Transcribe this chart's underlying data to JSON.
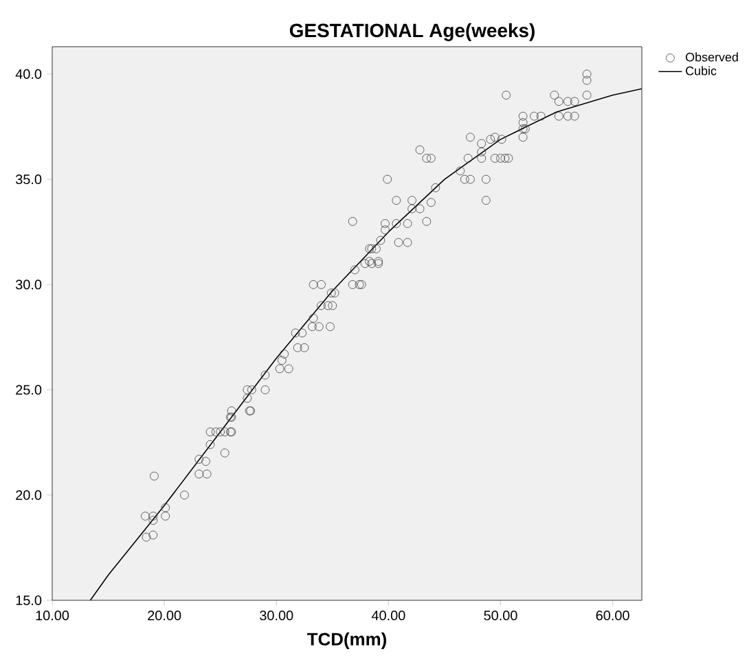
{
  "chart_data": {
    "type": "scatter",
    "title": "GESTATIONAL Age(weeks)",
    "xlabel": "TCD(mm)",
    "xlim": [
      10,
      62.6
    ],
    "ylim": [
      15,
      41.3
    ],
    "xticks": [
      {
        "value": 10,
        "label": "10.00"
      },
      {
        "value": 20,
        "label": "20.00"
      },
      {
        "value": 30,
        "label": "30.00"
      },
      {
        "value": 40,
        "label": "40.00"
      },
      {
        "value": 50,
        "label": "50.00"
      },
      {
        "value": 60,
        "label": "60.00"
      }
    ],
    "yticks": [
      {
        "value": 15,
        "label": "15.0"
      },
      {
        "value": 20,
        "label": "20.0"
      },
      {
        "value": 25,
        "label": "25.0"
      },
      {
        "value": 30,
        "label": "30.0"
      },
      {
        "value": 35,
        "label": "35.0"
      },
      {
        "value": 40,
        "label": "40.0"
      }
    ],
    "legend": "top right",
    "series": [
      {
        "name": "Observed",
        "marker": "circle",
        "color": "#404040",
        "x": [
          18.3,
          19.0,
          19.0,
          18.4,
          19.0,
          19.1,
          20.1,
          20.1,
          21.8,
          23.1,
          23.1,
          23.8,
          23.7,
          24.1,
          24.1,
          25.4,
          25.0,
          25.4,
          25.9,
          25.9,
          24.6,
          26.0,
          26.0,
          26.0,
          27.6,
          27.7,
          27.4,
          27.4,
          27.8,
          29.0,
          29.0,
          30.3,
          31.1,
          30.5,
          30.7,
          31.9,
          32.5,
          31.7,
          32.3,
          33.2,
          33.8,
          34.8,
          33.3,
          34.0,
          34.6,
          35.0,
          35.2,
          34.9,
          33.3,
          34.0,
          36.8,
          37.4,
          37.0,
          37.9,
          38.5,
          39.1,
          38.3,
          38.9,
          39.3,
          40.9,
          41.7,
          37.6,
          36.8,
          38.3,
          39.1,
          38.5,
          39.7,
          39.7,
          40.7,
          41.7,
          43.4,
          42.1,
          42.8,
          43.8,
          42.1,
          40.7,
          44.2,
          39.9,
          46.4,
          46.8,
          47.3,
          48.7,
          48.7,
          42.8,
          43.4,
          43.8,
          47.1,
          48.3,
          49.5,
          50.7,
          47.3,
          48.3,
          49.1,
          50.1,
          48.3,
          52.0,
          52.0,
          50.5,
          54.8,
          55.2,
          56.0,
          56.6,
          53.0,
          53.6,
          52.0,
          55.2,
          56.0,
          56.6,
          52.0,
          52.2,
          49.5,
          50.0,
          50.4,
          57.7,
          57.7,
          57.7
        ],
        "values": [
          19.0,
          19.0,
          18.8,
          18.0,
          18.1,
          20.9,
          19.4,
          19.0,
          20.0,
          21.7,
          21.0,
          21.0,
          21.6,
          22.4,
          23.0,
          22.0,
          23.0,
          23.0,
          23.0,
          23.7,
          23.0,
          23.0,
          23.7,
          24.0,
          24.0,
          24.0,
          24.6,
          25.0,
          25.0,
          25.0,
          25.7,
          26.0,
          26.0,
          26.4,
          26.7,
          27.0,
          27.0,
          27.7,
          27.7,
          28.0,
          28.0,
          28.0,
          28.4,
          29.0,
          29.0,
          29.0,
          29.6,
          29.6,
          30.0,
          30.0,
          30.0,
          30.0,
          30.7,
          31.0,
          31.0,
          31.0,
          31.7,
          31.7,
          32.1,
          32.0,
          32.0,
          30.0,
          33.0,
          31.1,
          31.1,
          31.7,
          32.9,
          32.6,
          32.9,
          32.9,
          33.0,
          33.6,
          33.6,
          33.9,
          34.0,
          34.0,
          34.6,
          35.0,
          35.4,
          35.0,
          35.0,
          35.0,
          34.0,
          36.4,
          36.0,
          36.0,
          36.0,
          36.0,
          36.0,
          36.0,
          37.0,
          36.7,
          36.9,
          36.9,
          36.3,
          37.0,
          37.4,
          39.0,
          39.0,
          38.7,
          38.7,
          38.7,
          38.0,
          38.0,
          38.0,
          38.0,
          38.0,
          38.0,
          37.7,
          37.4,
          37.0,
          36.0,
          36.0,
          40.0,
          39.7,
          39.0
        ]
      },
      {
        "name": "Cubic",
        "type": "line",
        "marker": "none",
        "color": "#000000",
        "x": [
          13.4,
          15,
          20,
          25,
          30,
          35,
          40,
          45,
          50,
          55,
          60,
          62.6
        ],
        "values": [
          15.0,
          16.2,
          19.5,
          23.0,
          26.5,
          29.7,
          32.5,
          35.0,
          36.9,
          38.2,
          39.0,
          39.3
        ]
      }
    ]
  }
}
